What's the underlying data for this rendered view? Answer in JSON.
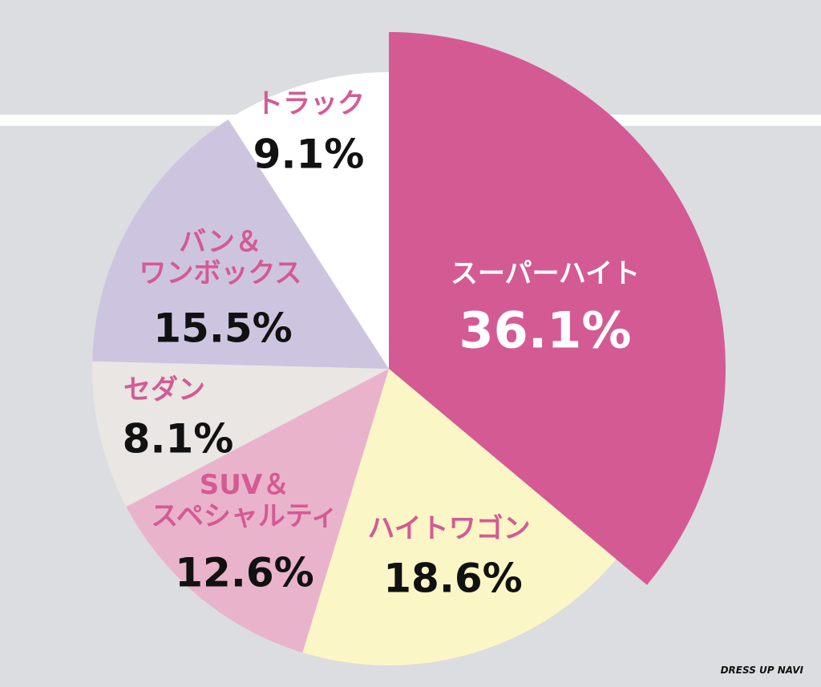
{
  "chart_data": {
    "type": "pie",
    "categories": [
      "スーパーハイト",
      "ハイトワゴン",
      "SUV＆\nスペシャルティ",
      "セダン",
      "バン＆\nワンボックス",
      "トラック"
    ],
    "values": [
      36.1,
      18.6,
      12.6,
      8.1,
      15.5,
      9.1
    ],
    "value_labels": [
      "36.1%",
      "18.6%",
      "12.6%",
      "8.1%",
      "15.5%",
      "9.1%"
    ],
    "colors": [
      "#d45a94",
      "#fbf6c6",
      "#e9b3cc",
      "#e9e6e4",
      "#cdc5e0",
      "#ffffff"
    ]
  },
  "watermark": "DRESS UP NAVI"
}
